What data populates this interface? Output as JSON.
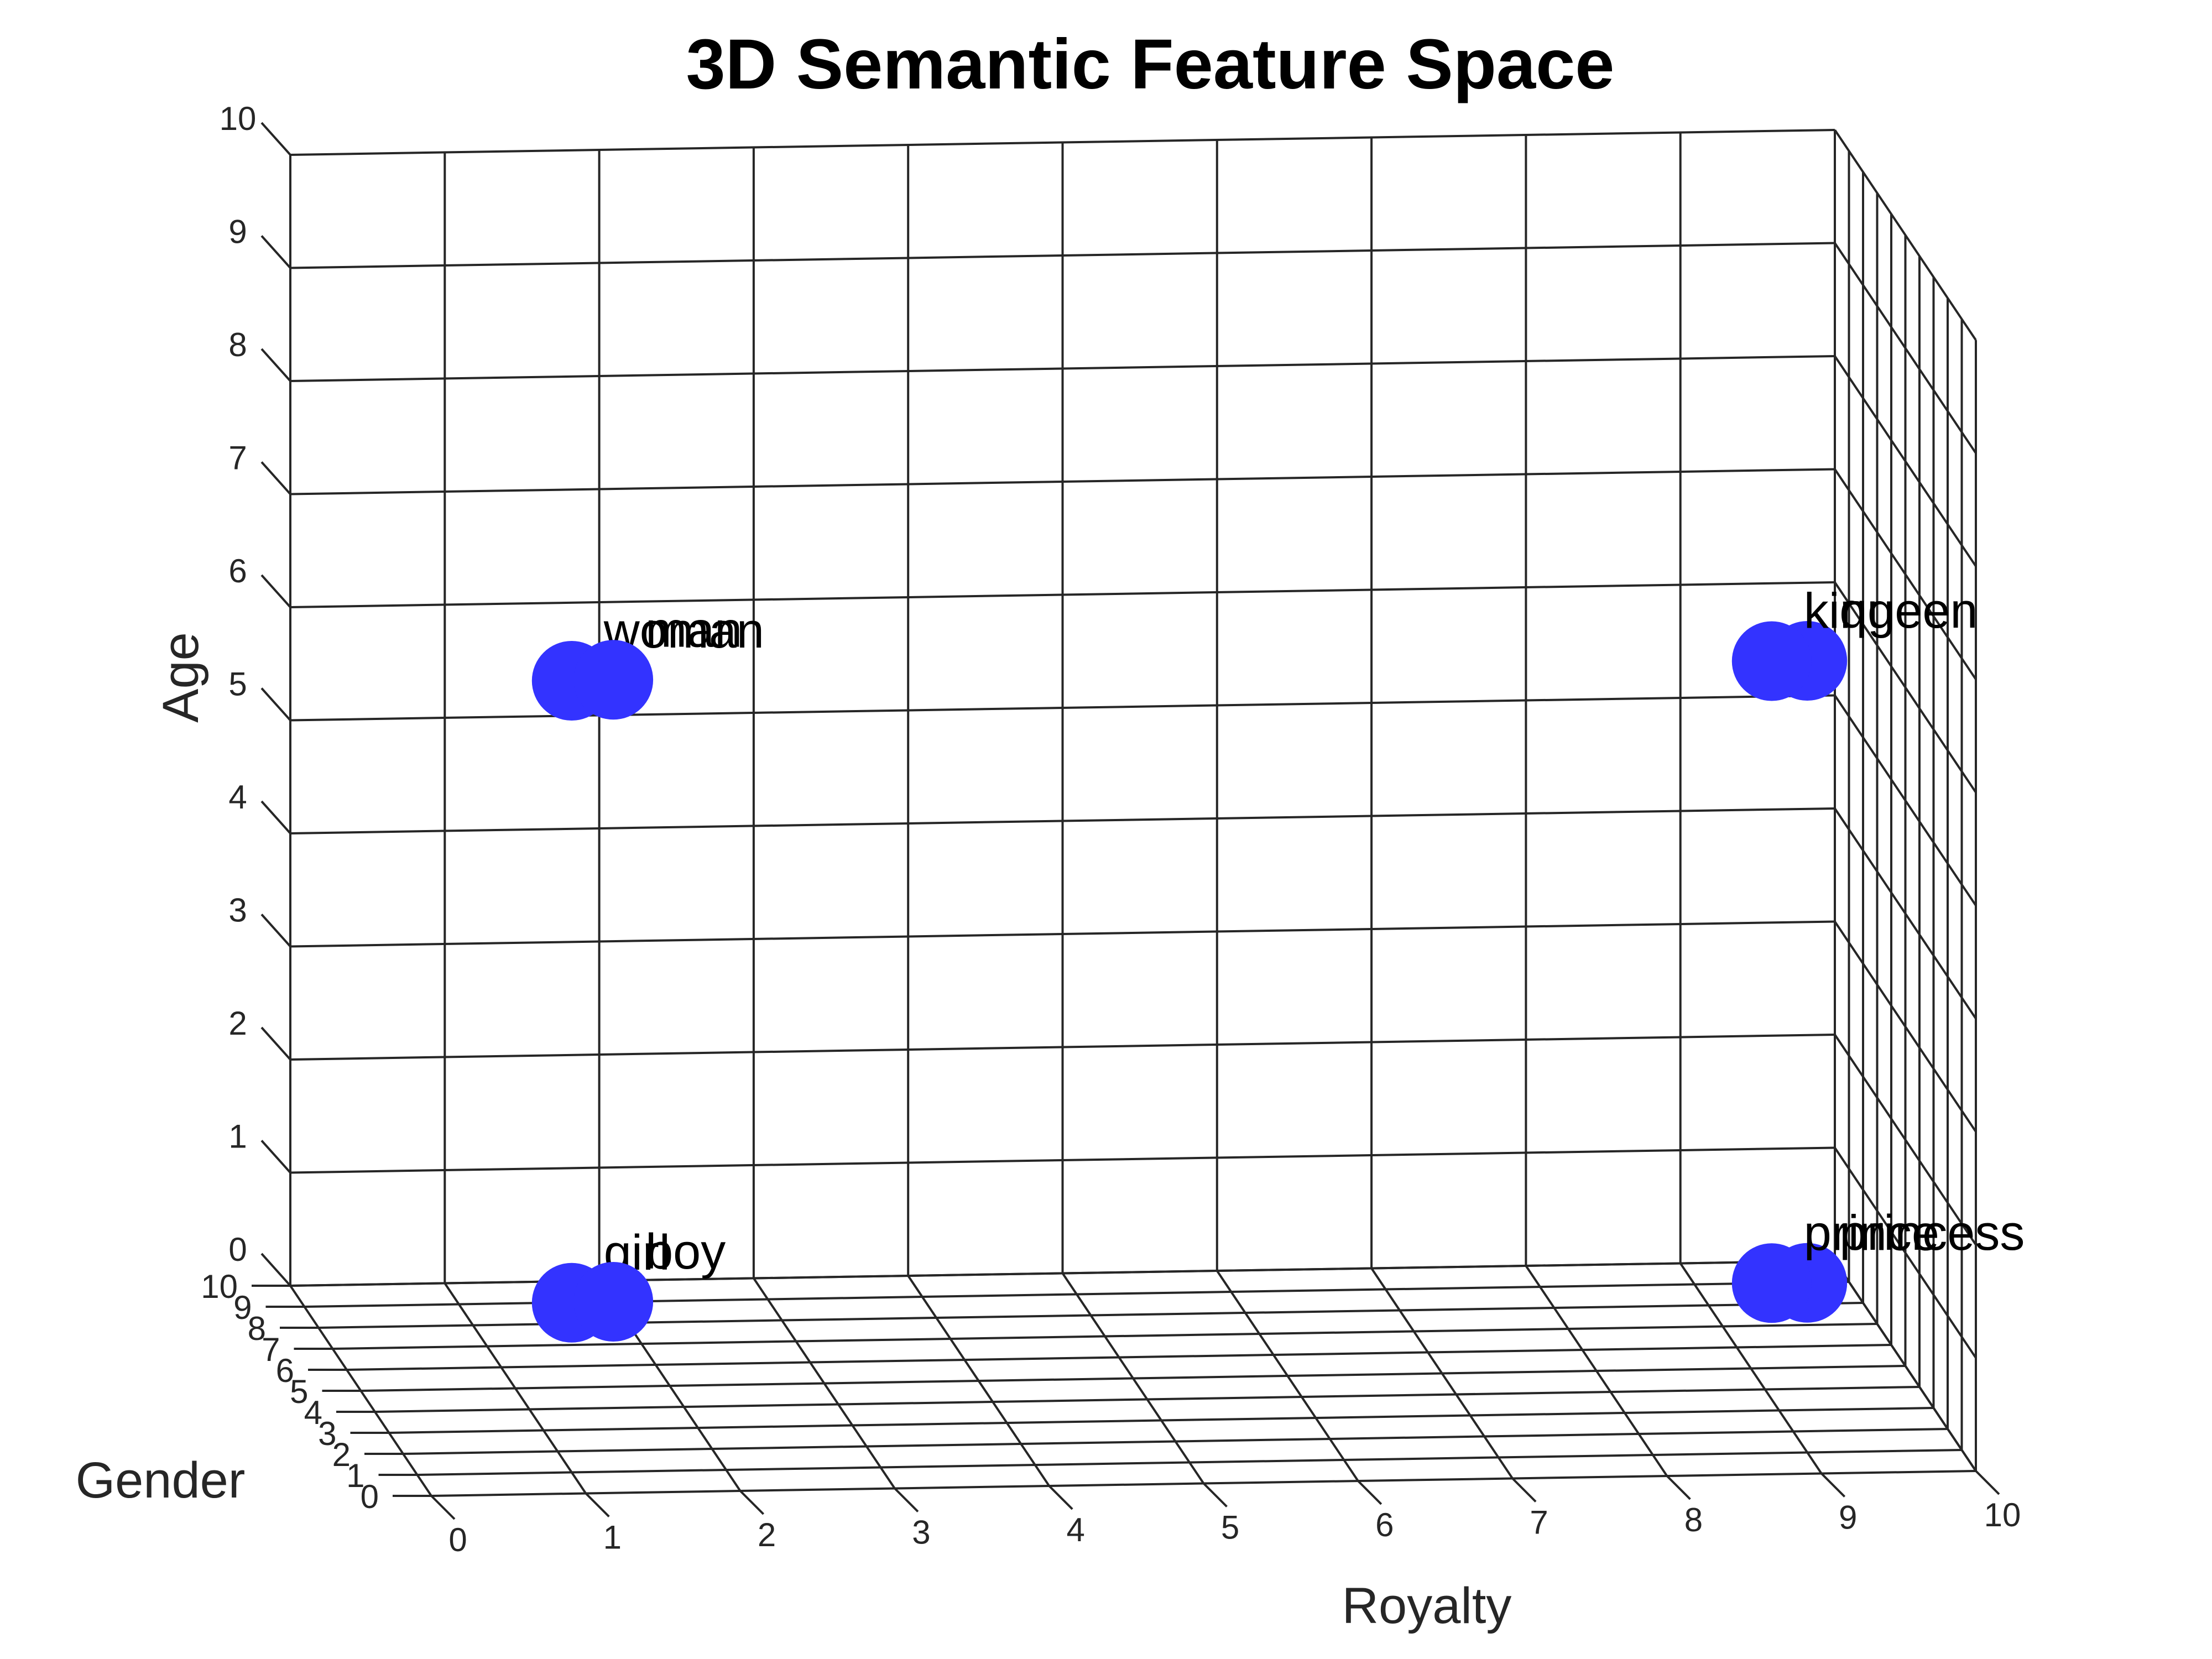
{
  "chart_data": {
    "type": "scatter",
    "title": "3D Semantic Feature Space",
    "xlabel": "Royalty",
    "ylabel": "Gender",
    "zlabel": "Age",
    "xlim": [
      0,
      10
    ],
    "ylim": [
      0,
      10
    ],
    "zlim": [
      0,
      10
    ],
    "x_ticks": [
      "0",
      "1",
      "2",
      "3",
      "4",
      "5",
      "6",
      "7",
      "8",
      "9",
      "10"
    ],
    "y_ticks": [
      "0",
      "1",
      "2",
      "3",
      "4",
      "5",
      "6",
      "7",
      "8",
      "9",
      "10"
    ],
    "z_ticks": [
      "0",
      "1",
      "2",
      "3",
      "4",
      "5",
      "6",
      "7",
      "8",
      "9",
      "10"
    ],
    "grid": true,
    "marker_color": "#3333ff",
    "points": [
      {
        "label": "woman",
        "x": 1.0,
        "y": 1.0,
        "z": 7.0
      },
      {
        "label": "man",
        "x": 2.0,
        "y": 9.0,
        "z": 5.5
      },
      {
        "label": "girl",
        "x": 1.0,
        "y": 1.0,
        "z": 1.5
      },
      {
        "label": "boy",
        "x": 2.0,
        "y": 9.0,
        "z": 0.0
      },
      {
        "label": "queen",
        "x": 9.0,
        "y": 1.0,
        "z": 7.0
      },
      {
        "label": "king",
        "x": 9.5,
        "y": 9.0,
        "z": 5.5
      },
      {
        "label": "princess",
        "x": 9.0,
        "y": 1.0,
        "z": 1.5
      },
      {
        "label": "prince",
        "x": 9.5,
        "y": 9.0,
        "z": 0.0
      }
    ]
  }
}
